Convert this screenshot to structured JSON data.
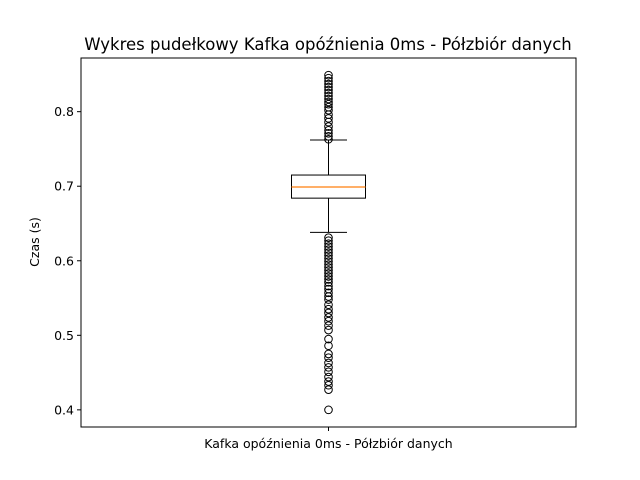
{
  "chart_data": {
    "type": "boxplot",
    "title": "Wykres pudełkowy Kafka opóźnienia 0ms - Półzbiór danych",
    "xlabel": "",
    "ylabel": "Czas (s)",
    "categories": [
      "Kafka opóźnienia 0ms - Półzbiór danych"
    ],
    "ylim": [
      0.377,
      0.872
    ],
    "yticks": [
      0.4,
      0.5,
      0.6,
      0.7,
      0.8
    ],
    "ytick_labels": [
      "0.4",
      "0.5",
      "0.6",
      "0.7",
      "0.8"
    ],
    "grid": false,
    "boxes": [
      {
        "q1": 0.684,
        "median": 0.699,
        "q3": 0.715,
        "whisker_low": 0.638,
        "whisker_high": 0.762,
        "outliers": [
          0.4,
          0.427,
          0.433,
          0.438,
          0.444,
          0.451,
          0.457,
          0.463,
          0.47,
          0.475,
          0.486,
          0.495,
          0.507,
          0.513,
          0.519,
          0.524,
          0.53,
          0.535,
          0.541,
          0.548,
          0.552,
          0.557,
          0.562,
          0.566,
          0.571,
          0.575,
          0.579,
          0.583,
          0.587,
          0.591,
          0.595,
          0.599,
          0.603,
          0.607,
          0.611,
          0.615,
          0.619,
          0.623,
          0.627,
          0.631,
          0.763,
          0.767,
          0.771,
          0.775,
          0.78,
          0.786,
          0.791,
          0.796,
          0.802,
          0.806,
          0.81,
          0.813,
          0.817,
          0.821,
          0.825,
          0.829,
          0.833,
          0.837,
          0.841,
          0.845,
          0.849
        ]
      }
    ],
    "colors": {
      "median": "#ff7f0e",
      "box": "#000000",
      "outlier": "#000000"
    }
  }
}
